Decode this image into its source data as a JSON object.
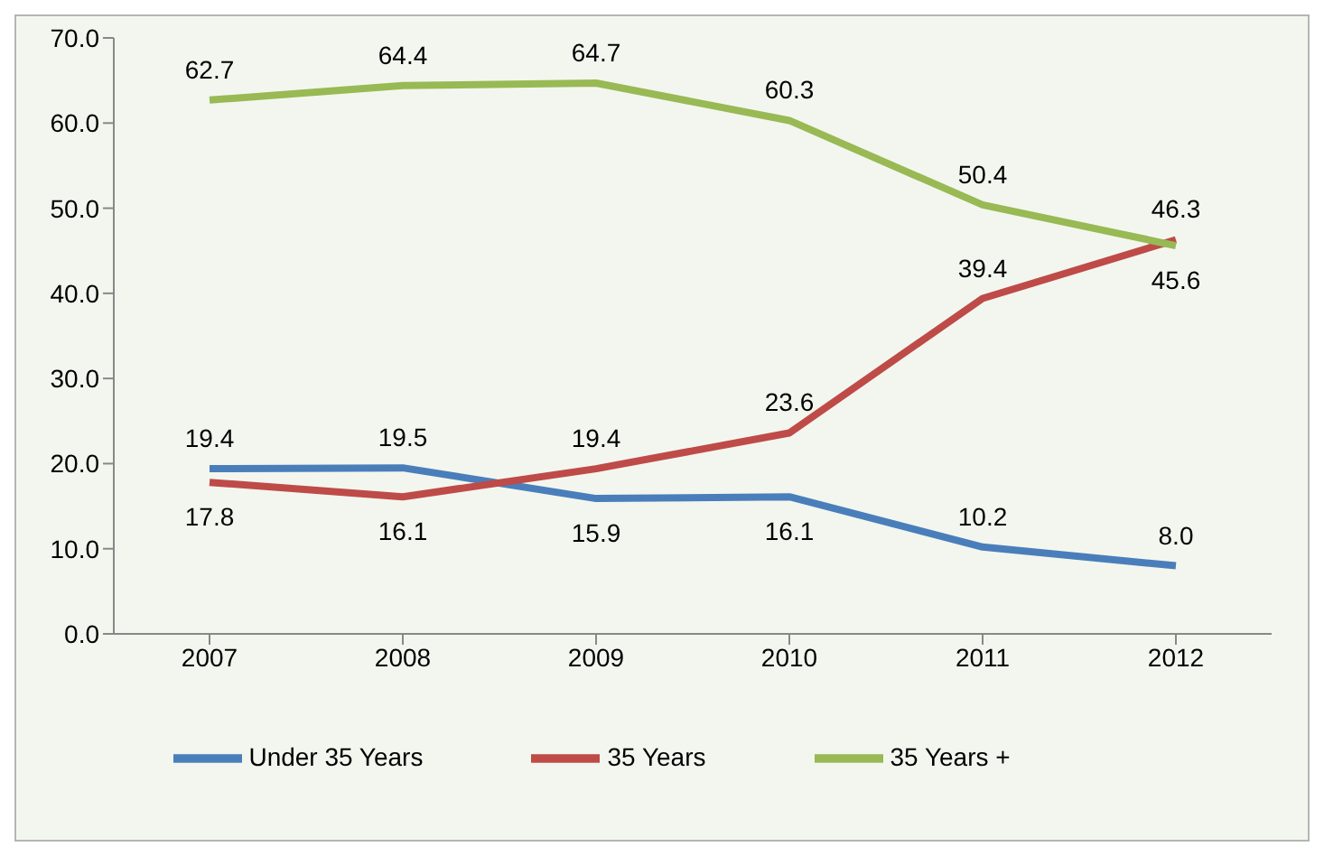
{
  "chart_data": {
    "type": "line",
    "categories": [
      "2007",
      "2008",
      "2009",
      "2010",
      "2011",
      "2012"
    ],
    "series": [
      {
        "name": "Under 35 Years",
        "color": "#4a7ebb",
        "values": [
          19.4,
          19.5,
          15.9,
          16.1,
          10.2,
          8.0
        ],
        "value_labels": [
          "19.4",
          "19.5",
          "15.9",
          "16.1",
          "10.2",
          "8.0"
        ]
      },
      {
        "name": "35 Years",
        "color": "#be4b48",
        "values": [
          17.8,
          16.1,
          19.4,
          23.6,
          39.4,
          46.3
        ],
        "value_labels": [
          "17.8",
          "16.1",
          "19.4",
          "23.6",
          "39.4",
          "46.3"
        ]
      },
      {
        "name": "35 Years +",
        "color": "#98b954",
        "values": [
          62.7,
          64.4,
          64.7,
          60.3,
          50.4,
          45.6
        ],
        "value_labels": [
          "62.7",
          "64.4",
          "64.7",
          "60.3",
          "50.4",
          "45.6"
        ]
      }
    ],
    "ylim": [
      0,
      70
    ],
    "yticks": [
      {
        "value": 0,
        "label": "0.0"
      },
      {
        "value": 10,
        "label": "10.0"
      },
      {
        "value": 20,
        "label": "20.0"
      },
      {
        "value": 30,
        "label": "30.0"
      },
      {
        "value": 40,
        "label": "40.0"
      },
      {
        "value": 50,
        "label": "50.0"
      },
      {
        "value": 60,
        "label": "60.0"
      },
      {
        "value": 70,
        "label": "70.0"
      }
    ],
    "grid": false,
    "legend": "bottom",
    "marker": "none",
    "line_style": "solid"
  }
}
